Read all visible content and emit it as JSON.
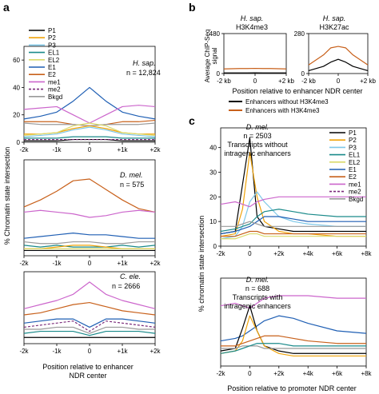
{
  "panel_labels": {
    "a": "a",
    "b": "b",
    "c": "c"
  },
  "legend": {
    "entries": [
      {
        "label": "P1",
        "color": "#000000",
        "dash": false
      },
      {
        "label": "P2",
        "color": "#f0a30a",
        "dash": false
      },
      {
        "label": "P3",
        "color": "#7ec8e8",
        "dash": false
      },
      {
        "label": "EL1",
        "color": "#1a8a8a",
        "dash": false
      },
      {
        "label": "EL2",
        "color": "#d9d96a",
        "dash": false
      },
      {
        "label": "E1",
        "color": "#1f5fb4",
        "dash": false
      },
      {
        "label": "E2",
        "color": "#c8601a",
        "dash": false
      },
      {
        "label": "me1",
        "color": "#cc66cc",
        "dash": false
      },
      {
        "label": "me2",
        "color": "#7a2a7a",
        "dash": true
      },
      {
        "label": "Bkgd",
        "color": "#999999",
        "dash": false
      }
    ]
  },
  "text": {
    "a_ylabel": "% Chromatin state intersection",
    "a_xlabel_1": "Position relative to enhancer",
    "a_xlabel_2": "NDR center",
    "b_ylabel_1": "Average ChIP-Seq",
    "b_ylabel_2": "signal",
    "b_xlabel": "Position relative to enhancer NDR center",
    "b_leg1": "Enhancers without H3K4me3",
    "b_leg2": "Enhancers with H3K4me3",
    "c_ylabel": "% chromatin state intersection",
    "c_xlabel": "Position relative to promoter NDR center"
  },
  "chart_data": [
    {
      "type": "line",
      "panel": "a-top",
      "species": "H. sap.",
      "n_label": "n = 12,824",
      "x": [
        -2000,
        -1500,
        -1000,
        -500,
        0,
        500,
        1000,
        1500,
        2000
      ],
      "xticklabels": [
        "-2k",
        "-1k",
        "0",
        "+1k",
        "+2k"
      ],
      "yticklabels": [
        "0",
        "20",
        "40",
        "60"
      ],
      "ylim": [
        0,
        70
      ],
      "series": [
        {
          "name": "E1",
          "values": [
            17,
            19,
            22,
            30,
            40,
            30,
            22,
            19,
            17
          ]
        },
        {
          "name": "me1",
          "values": [
            24,
            25,
            26,
            20,
            14,
            20,
            26,
            27,
            26
          ]
        },
        {
          "name": "E2",
          "values": [
            15,
            15,
            15,
            13,
            12,
            13,
            15,
            15,
            16
          ]
        },
        {
          "name": "Bkgd",
          "values": [
            14,
            13,
            13,
            13,
            12,
            13,
            13,
            13,
            14
          ]
        },
        {
          "name": "P2",
          "values": [
            6,
            6,
            7,
            10,
            12,
            10,
            7,
            6,
            6
          ]
        },
        {
          "name": "EL2",
          "values": [
            5,
            6,
            7,
            12,
            14,
            12,
            7,
            6,
            5
          ]
        },
        {
          "name": "P3",
          "values": [
            4,
            5,
            6,
            9,
            11,
            9,
            6,
            5,
            4
          ]
        },
        {
          "name": "EL1",
          "values": [
            3,
            3,
            3,
            4,
            4,
            4,
            3,
            3,
            3
          ]
        },
        {
          "name": "P1",
          "values": [
            1,
            1,
            1,
            2,
            2,
            2,
            1,
            1,
            1
          ]
        },
        {
          "name": "me2",
          "values": [
            2,
            2,
            2,
            2,
            2,
            2,
            2,
            2,
            2
          ]
        }
      ]
    },
    {
      "type": "line",
      "panel": "a-middle",
      "species": "D. mel.",
      "n_label": "n = 575",
      "x": [
        -2000,
        -1500,
        -1000,
        -500,
        0,
        500,
        1000,
        1500,
        2000
      ],
      "xticklabels": [
        "-2k",
        "-1k",
        "0",
        "+1k",
        "+2k"
      ],
      "series": [
        {
          "name": "E2",
          "values": [
            28,
            32,
            37,
            43,
            44,
            38,
            32,
            27,
            25
          ]
        },
        {
          "name": "me1",
          "values": [
            25,
            26,
            25,
            24,
            22,
            23,
            25,
            26,
            25
          ]
        },
        {
          "name": "E1",
          "values": [
            10,
            11,
            12,
            13,
            12,
            12,
            11,
            10,
            10
          ]
        },
        {
          "name": "Bkgd",
          "values": [
            8,
            7,
            7,
            8,
            8,
            7,
            7,
            8,
            8
          ]
        },
        {
          "name": "EL1",
          "values": [
            6,
            5,
            6,
            5,
            5,
            5,
            6,
            5,
            6
          ]
        },
        {
          "name": "P2",
          "values": [
            4,
            4,
            5,
            6,
            6,
            5,
            4,
            4,
            4
          ]
        },
        {
          "name": "EL2",
          "values": [
            4,
            4,
            4,
            4,
            4,
            4,
            4,
            4,
            4
          ]
        },
        {
          "name": "P1",
          "values": [
            3,
            3,
            3,
            3,
            3,
            3,
            3,
            3,
            3
          ]
        }
      ]
    },
    {
      "type": "line",
      "panel": "a-bottom",
      "species": "C. ele.",
      "n_label": "n = 2666",
      "x": [
        -2000,
        -1500,
        -1000,
        -500,
        0,
        500,
        1000,
        1500,
        2000
      ],
      "xticklabels": [
        "-2k",
        "-1k",
        "0",
        "+1k",
        "+2k"
      ],
      "series": [
        {
          "name": "me1",
          "values": [
            17,
            19,
            21,
            24,
            30,
            24,
            21,
            19,
            17
          ]
        },
        {
          "name": "E2",
          "values": [
            14,
            15,
            17,
            19,
            20,
            18,
            16,
            15,
            14
          ]
        },
        {
          "name": "E1",
          "values": [
            10,
            11,
            12,
            12,
            8,
            12,
            12,
            11,
            10
          ]
        },
        {
          "name": "me2",
          "values": [
            8,
            9,
            10,
            11,
            6,
            11,
            10,
            9,
            8
          ]
        },
        {
          "name": "Bkgd",
          "values": [
            7,
            7,
            8,
            8,
            5,
            8,
            8,
            7,
            7
          ]
        },
        {
          "name": "EL1",
          "values": [
            5,
            6,
            6,
            6,
            4,
            6,
            6,
            6,
            5
          ]
        },
        {
          "name": "P1",
          "values": [
            3,
            3,
            3,
            3,
            3,
            3,
            3,
            3,
            3
          ]
        }
      ]
    },
    {
      "type": "line",
      "panel": "b-left",
      "title_species": "H. sap.",
      "title_mark": "H3K4me3",
      "yticklabels": [
        "0",
        "480"
      ],
      "xticklabels": [
        "-2 kb",
        "0",
        "+2 kb"
      ],
      "x": [
        -2000,
        -1000,
        -500,
        0,
        500,
        1000,
        2000
      ],
      "series": [
        {
          "name": "Enhancers without H3K4me3",
          "values": [
            8,
            8,
            8,
            9,
            8,
            8,
            8
          ]
        },
        {
          "name": "Enhancers with H3K4me3",
          "values": [
            55,
            60,
            60,
            62,
            60,
            60,
            55
          ]
        }
      ]
    },
    {
      "type": "line",
      "panel": "b-right",
      "title_species": "H. sap.",
      "title_mark": "H3K27ac",
      "yticklabels": [
        "0",
        "280"
      ],
      "xticklabels": [
        "-2 kb",
        "0",
        "+2 kb"
      ],
      "x": [
        -2000,
        -1000,
        -500,
        0,
        500,
        1000,
        2000
      ],
      "series": [
        {
          "name": "Enhancers without H3K4me3",
          "values": [
            20,
            50,
            80,
            100,
            80,
            50,
            20
          ]
        },
        {
          "name": "Enhancers with H3K4me3",
          "values": [
            60,
            130,
            180,
            190,
            180,
            130,
            60
          ]
        }
      ]
    },
    {
      "type": "line",
      "panel": "c-top",
      "species": "D. mel.",
      "n_label": "n = 2503",
      "subtitle_1": "Transcripts without",
      "subtitle_2": "intragenic enhancers",
      "x": [
        -2000,
        -1000,
        -500,
        0,
        500,
        1000,
        2000,
        3000,
        4000,
        6000,
        8000
      ],
      "xticklabels": [
        "-2k",
        "0",
        "+2k",
        "+4k",
        "+6k",
        "+8k"
      ],
      "yticklabels": [
        "0",
        "10",
        "20",
        "30",
        "40"
      ],
      "ylim": [
        0,
        48
      ],
      "series": [
        {
          "name": "P1",
          "values": [
            5,
            6,
            25,
            44,
            12,
            8,
            7,
            6,
            6,
            6,
            6
          ]
        },
        {
          "name": "P2",
          "values": [
            4,
            5,
            15,
            38,
            20,
            10,
            6,
            5,
            5,
            4,
            4
          ]
        },
        {
          "name": "P3",
          "values": [
            3,
            4,
            8,
            18,
            22,
            18,
            12,
            10,
            9,
            8,
            8
          ]
        },
        {
          "name": "EL1",
          "values": [
            6,
            7,
            8,
            9,
            12,
            14,
            15,
            14,
            13,
            12,
            12
          ]
        },
        {
          "name": "E1",
          "values": [
            5,
            6,
            7,
            8,
            10,
            12,
            12,
            11,
            10,
            10,
            10
          ]
        },
        {
          "name": "me1",
          "values": [
            17,
            18,
            17,
            16,
            18,
            19,
            20,
            20,
            20,
            20,
            20
          ]
        },
        {
          "name": "Bkgd",
          "values": [
            8,
            8,
            9,
            10,
            9,
            8,
            8,
            8,
            8,
            8,
            8
          ]
        },
        {
          "name": "EL2",
          "values": [
            3,
            3,
            4,
            5,
            5,
            4,
            4,
            4,
            4,
            4,
            4
          ]
        },
        {
          "name": "E2",
          "values": [
            4,
            4,
            5,
            6,
            6,
            5,
            5,
            5,
            5,
            5,
            5
          ]
        }
      ]
    },
    {
      "type": "line",
      "panel": "c-bottom",
      "species": "D. mel.",
      "n_label": "n = 688",
      "subtitle_1": "Transcripts with",
      "subtitle_2": "intragenic enhancers",
      "x": [
        -2000,
        -1000,
        -500,
        0,
        500,
        1000,
        2000,
        3000,
        4000,
        6000,
        8000
      ],
      "xticklabels": [
        "-2k",
        "0",
        "+2k",
        "+4k",
        "+6k",
        "+8k"
      ],
      "series": [
        {
          "name": "me1",
          "values": [
            24,
            25,
            24,
            23,
            25,
            27,
            28,
            28,
            28,
            27,
            27
          ]
        },
        {
          "name": "E1",
          "values": [
            10,
            11,
            12,
            14,
            16,
            18,
            20,
            19,
            17,
            14,
            13
          ]
        },
        {
          "name": "P1",
          "values": [
            6,
            7,
            15,
            24,
            14,
            8,
            6,
            5,
            5,
            5,
            5
          ]
        },
        {
          "name": "P2",
          "values": [
            5,
            6,
            10,
            20,
            14,
            8,
            5,
            4,
            4,
            4,
            4
          ]
        },
        {
          "name": "E2",
          "values": [
            8,
            8,
            9,
            10,
            11,
            12,
            12,
            11,
            10,
            9,
            9
          ]
        },
        {
          "name": "Bkgd",
          "values": [
            7,
            7,
            8,
            8,
            8,
            7,
            7,
            7,
            7,
            7,
            7
          ]
        },
        {
          "name": "EL1",
          "values": [
            5,
            6,
            7,
            8,
            9,
            9,
            9,
            8,
            8,
            8,
            8
          ]
        }
      ]
    }
  ]
}
